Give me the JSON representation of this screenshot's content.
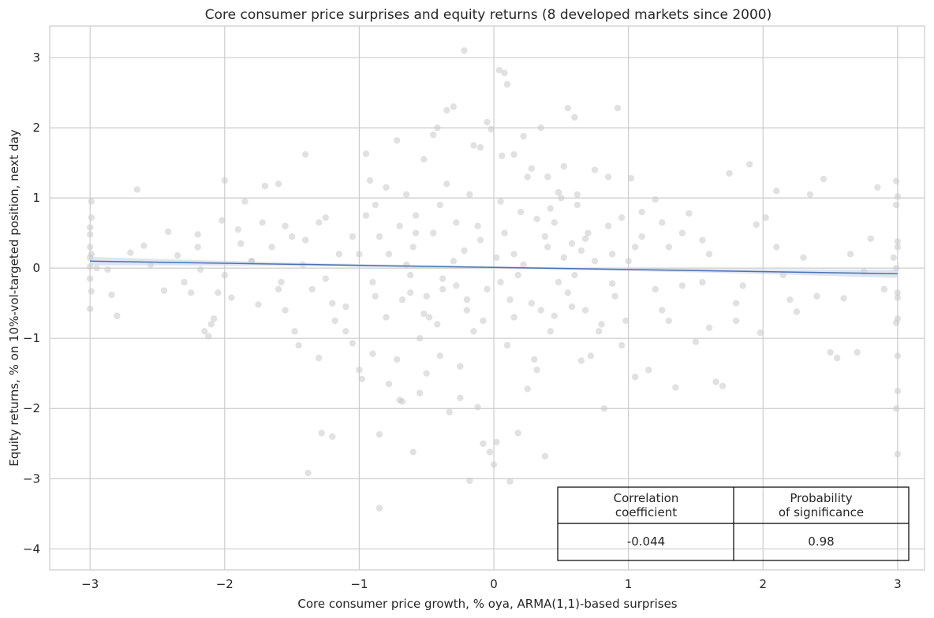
{
  "chart_data": {
    "type": "scatter",
    "title": "Core consumer price surprises and equity returns (8 developed markets since 2000)",
    "xlabel": "Core consumer price growth, % oya, ARMA(1,1)-based surprises",
    "ylabel": "Equity returns, % on 10%-vol-targeted position, next day",
    "xlim": [
      -3.3,
      3.2
    ],
    "ylim": [
      -4.3,
      3.45
    ],
    "xticks": [
      -3,
      -2,
      -1,
      0,
      1,
      2,
      3
    ],
    "xtick_labels": [
      "−3",
      "−2",
      "−1",
      "0",
      "1",
      "2",
      "3"
    ],
    "yticks": [
      -4,
      -3,
      -2,
      -1,
      0,
      1,
      2,
      3
    ],
    "ytick_labels": [
      "−4",
      "−3",
      "−2",
      "−1",
      "0",
      "1",
      "2",
      "3"
    ],
    "grid": true,
    "point_color": "#c8c8c8",
    "regression": {
      "x": [
        -3,
        3
      ],
      "y": [
        0.1,
        -0.08
      ],
      "color": "#4c72b0",
      "ci_color": "#c8d3ea",
      "ci_halfwidth_edges": 0.06,
      "ci_halfwidth_center": 0.015
    },
    "points": [
      [
        -2.99,
        0.95
      ],
      [
        -2.99,
        0.72
      ],
      [
        -3.0,
        0.58
      ],
      [
        -3.0,
        0.48
      ],
      [
        -3.0,
        0.3
      ],
      [
        -2.99,
        0.2
      ],
      [
        -3.0,
        0.15
      ],
      [
        -3.0,
        0.02
      ],
      [
        -3.0,
        -0.15
      ],
      [
        -2.99,
        -0.33
      ],
      [
        -3.0,
        -0.58
      ],
      [
        -2.95,
        0.0
      ],
      [
        -2.87,
        -0.02
      ],
      [
        -2.84,
        -0.38
      ],
      [
        -2.8,
        -0.68
      ],
      [
        -2.65,
        1.12
      ],
      [
        -2.7,
        0.22
      ],
      [
        -2.6,
        0.32
      ],
      [
        -2.55,
        0.05
      ],
      [
        -2.45,
        -0.32
      ],
      [
        -2.42,
        0.52
      ],
      [
        -2.35,
        0.18
      ],
      [
        -2.3,
        -0.2
      ],
      [
        -2.25,
        -0.35
      ],
      [
        -2.2,
        0.48
      ],
      [
        -2.18,
        -0.02
      ],
      [
        -2.15,
        -0.9
      ],
      [
        -2.12,
        -0.97
      ],
      [
        -2.1,
        -0.8
      ],
      [
        -2.08,
        -0.72
      ],
      [
        -2.05,
        -0.35
      ],
      [
        -2.02,
        0.68
      ],
      [
        -2.0,
        1.25
      ],
      [
        -1.95,
        -0.42
      ],
      [
        -1.9,
        0.55
      ],
      [
        -1.88,
        0.35
      ],
      [
        -1.85,
        0.95
      ],
      [
        -1.8,
        0.1
      ],
      [
        -1.75,
        -0.52
      ],
      [
        -1.72,
        0.65
      ],
      [
        -1.7,
        1.17
      ],
      [
        -1.65,
        0.3
      ],
      [
        -1.6,
        1.2
      ],
      [
        -1.58,
        -0.2
      ],
      [
        -1.55,
        -0.6
      ],
      [
        -1.5,
        0.45
      ],
      [
        -1.48,
        -0.9
      ],
      [
        -1.45,
        -1.1
      ],
      [
        -1.42,
        0.05
      ],
      [
        -1.4,
        1.62
      ],
      [
        -1.38,
        -2.92
      ],
      [
        -1.35,
        -0.3
      ],
      [
        -1.3,
        -1.28
      ],
      [
        -1.28,
        -2.35
      ],
      [
        -1.25,
        0.72
      ],
      [
        -1.2,
        -2.4
      ],
      [
        -1.18,
        -0.75
      ],
      [
        -1.15,
        0.2
      ],
      [
        -1.1,
        -0.55
      ],
      [
        -1.05,
        -1.07
      ],
      [
        -1.0,
        -1.45
      ],
      [
        -0.98,
        -1.58
      ],
      [
        -0.95,
        1.63
      ],
      [
        -0.92,
        1.25
      ],
      [
        -0.9,
        -1.22
      ],
      [
        -0.88,
        0.9
      ],
      [
        -0.85,
        -2.37
      ],
      [
        -0.85,
        -3.42
      ],
      [
        -0.8,
        1.15
      ],
      [
        -0.78,
        -1.65
      ],
      [
        -0.72,
        1.82
      ],
      [
        -0.7,
        -1.88
      ],
      [
        -0.68,
        -1.9
      ],
      [
        -0.65,
        1.05
      ],
      [
        -0.62,
        -0.35
      ],
      [
        -0.6,
        -2.62
      ],
      [
        -0.58,
        0.5
      ],
      [
        -0.55,
        -1.78
      ],
      [
        -0.52,
        1.55
      ],
      [
        -0.5,
        -1.5
      ],
      [
        -0.48,
        -0.7
      ],
      [
        -0.45,
        1.9
      ],
      [
        -0.42,
        2.0
      ],
      [
        -0.4,
        -1.25
      ],
      [
        -0.38,
        -0.3
      ],
      [
        -0.35,
        2.25
      ],
      [
        -0.33,
        -2.05
      ],
      [
        -0.3,
        2.3
      ],
      [
        -0.28,
        0.65
      ],
      [
        -0.25,
        -1.85
      ],
      [
        -0.22,
        3.1
      ],
      [
        -0.2,
        -0.45
      ],
      [
        -0.18,
        -3.03
      ],
      [
        -0.15,
        1.75
      ],
      [
        -0.12,
        -1.98
      ],
      [
        -0.1,
        1.72
      ],
      [
        -0.08,
        -2.5
      ],
      [
        -0.05,
        2.08
      ],
      [
        -0.03,
        -2.62
      ],
      [
        -0.02,
        1.98
      ],
      [
        0.0,
        -2.8
      ],
      [
        0.02,
        -2.48
      ],
      [
        0.04,
        2.82
      ],
      [
        0.06,
        1.6
      ],
      [
        0.08,
        2.78
      ],
      [
        0.1,
        2.62
      ],
      [
        0.12,
        -3.04
      ],
      [
        0.15,
        1.62
      ],
      [
        0.18,
        -2.35
      ],
      [
        0.22,
        1.88
      ],
      [
        0.25,
        -1.72
      ],
      [
        0.28,
        1.42
      ],
      [
        0.32,
        -1.45
      ],
      [
        0.35,
        2.0
      ],
      [
        0.38,
        -2.68
      ],
      [
        0.4,
        1.3
      ],
      [
        0.42,
        0.85
      ],
      [
        0.45,
        -0.68
      ],
      [
        0.48,
        1.08
      ],
      [
        0.52,
        1.45
      ],
      [
        0.55,
        2.28
      ],
      [
        0.58,
        -0.55
      ],
      [
        0.6,
        2.15
      ],
      [
        0.62,
        1.05
      ],
      [
        0.65,
        -1.32
      ],
      [
        0.68,
        0.42
      ],
      [
        0.72,
        -1.25
      ],
      [
        0.75,
        1.4
      ],
      [
        0.78,
        -0.9
      ],
      [
        0.82,
        -2.0
      ],
      [
        0.85,
        1.3
      ],
      [
        0.88,
        -0.22
      ],
      [
        0.92,
        2.28
      ],
      [
        0.95,
        0.72
      ],
      [
        0.98,
        -0.75
      ],
      [
        1.02,
        1.28
      ],
      [
        1.05,
        -1.55
      ],
      [
        1.1,
        0.45
      ],
      [
        1.15,
        -1.45
      ],
      [
        1.2,
        0.98
      ],
      [
        1.25,
        -0.6
      ],
      [
        1.3,
        0.3
      ],
      [
        1.35,
        -1.7
      ],
      [
        1.4,
        -0.25
      ],
      [
        1.45,
        0.78
      ],
      [
        1.5,
        -1.05
      ],
      [
        1.55,
        0.4
      ],
      [
        1.6,
        -0.85
      ],
      [
        1.65,
        -1.62
      ],
      [
        1.7,
        -1.68
      ],
      [
        1.75,
        1.35
      ],
      [
        1.8,
        -0.75
      ],
      [
        1.85,
        -0.25
      ],
      [
        1.9,
        1.48
      ],
      [
        1.95,
        0.62
      ],
      [
        1.98,
        -0.92
      ],
      [
        2.02,
        0.72
      ],
      [
        2.1,
        1.1
      ],
      [
        2.15,
        -0.1
      ],
      [
        2.2,
        -0.45
      ],
      [
        2.25,
        -0.62
      ],
      [
        2.3,
        0.15
      ],
      [
        2.35,
        1.05
      ],
      [
        2.4,
        -0.4
      ],
      [
        2.45,
        1.27
      ],
      [
        2.5,
        -1.2
      ],
      [
        2.55,
        -1.28
      ],
      [
        2.6,
        -0.43
      ],
      [
        2.65,
        0.2
      ],
      [
        2.7,
        -1.2
      ],
      [
        2.75,
        -0.05
      ],
      [
        2.8,
        0.42
      ],
      [
        2.85,
        1.15
      ],
      [
        2.9,
        -0.3
      ],
      [
        2.97,
        0.15
      ],
      [
        2.99,
        1.24
      ],
      [
        3.0,
        1.02
      ],
      [
        2.99,
        0.9
      ],
      [
        3.0,
        0.38
      ],
      [
        3.0,
        0.3
      ],
      [
        2.99,
        0.0
      ],
      [
        3.0,
        -0.35
      ],
      [
        3.0,
        -0.42
      ],
      [
        3.0,
        -0.72
      ],
      [
        2.99,
        -0.78
      ],
      [
        3.0,
        -1.25
      ],
      [
        3.0,
        -1.75
      ],
      [
        2.99,
        -2.0
      ],
      [
        3.0,
        -2.65
      ],
      [
        0.28,
        -0.5
      ],
      [
        -0.1,
        0.4
      ],
      [
        0.05,
        -0.2
      ],
      [
        -0.3,
        0.1
      ],
      [
        0.4,
        0.3
      ],
      [
        -0.5,
        -0.4
      ],
      [
        0.2,
        0.8
      ],
      [
        -0.15,
        -0.9
      ],
      [
        0.6,
        -0.1
      ],
      [
        -0.7,
        0.6
      ],
      [
        0.35,
        -0.6
      ],
      [
        -0.4,
        0.9
      ],
      [
        0.1,
        -1.1
      ],
      [
        0.7,
        0.5
      ],
      [
        -0.9,
        -0.2
      ],
      [
        0.5,
        1.0
      ],
      [
        -0.2,
        -0.6
      ],
      [
        0.15,
        0.2
      ],
      [
        -0.6,
        0.3
      ],
      [
        0.9,
        -0.4
      ],
      [
        -1.0,
        0.2
      ],
      [
        0.3,
        -1.3
      ],
      [
        -0.35,
        1.2
      ],
      [
        1.0,
        0.1
      ],
      [
        -1.2,
        -0.5
      ],
      [
        0.45,
        0.65
      ],
      [
        -0.55,
        -1.0
      ],
      [
        0.65,
        0.25
      ],
      [
        -0.8,
        -0.7
      ],
      [
        1.2,
        -0.3
      ],
      [
        -1.4,
        0.4
      ],
      [
        0.25,
        1.3
      ],
      [
        -0.25,
        -1.4
      ],
      [
        0.8,
        -0.8
      ],
      [
        -0.45,
        0.5
      ],
      [
        1.4,
        0.5
      ],
      [
        -1.6,
        -0.3
      ],
      [
        0.05,
        0.95
      ],
      [
        -0.05,
        -0.3
      ],
      [
        0.55,
        -0.35
      ],
      [
        -0.65,
        0.05
      ],
      [
        1.1,
        0.8
      ],
      [
        -1.1,
        -0.9
      ],
      [
        0.18,
        -0.1
      ],
      [
        -0.12,
        0.6
      ],
      [
        0.75,
        0.1
      ],
      [
        -0.85,
        0.45
      ],
      [
        1.6,
        0.2
      ],
      [
        -1.8,
        0.1
      ],
      [
        0.38,
        0.45
      ],
      [
        -0.38,
        -0.15
      ],
      [
        0.95,
        -1.1
      ],
      [
        -0.95,
        0.75
      ],
      [
        1.8,
        -0.5
      ],
      [
        -2.0,
        -0.1
      ],
      [
        0.02,
        0.15
      ],
      [
        0.12,
        -0.45
      ],
      [
        -0.22,
        0.25
      ],
      [
        0.42,
        -0.9
      ],
      [
        -0.52,
        -0.65
      ],
      [
        0.62,
        0.9
      ],
      [
        -0.72,
        -1.3
      ],
      [
        0.85,
        0.6
      ],
      [
        -1.3,
        0.65
      ],
      [
        1.3,
        -0.75
      ],
      [
        0.08,
        0.5
      ],
      [
        -0.08,
        -0.75
      ],
      [
        0.22,
        0.05
      ],
      [
        -0.28,
        -0.25
      ],
      [
        0.48,
        -0.2
      ],
      [
        -0.58,
        0.75
      ],
      [
        0.68,
        -0.6
      ],
      [
        -0.78,
        0.2
      ],
      [
        1.05,
        0.3
      ],
      [
        -1.05,
        0.45
      ],
      [
        0.32,
        0.7
      ],
      [
        -0.42,
        -0.8
      ],
      [
        0.58,
        0.35
      ],
      [
        -0.68,
        -0.45
      ],
      [
        1.25,
        0.65
      ],
      [
        -1.25,
        -0.15
      ],
      [
        1.55,
        -0.2
      ],
      [
        -1.55,
        0.6
      ],
      [
        0.15,
        -0.7
      ],
      [
        -0.18,
        1.05
      ],
      [
        0.52,
        0.15
      ],
      [
        -0.62,
        -0.1
      ],
      [
        0.88,
        0.2
      ],
      [
        -0.88,
        -0.4
      ],
      [
        2.1,
        0.3
      ],
      [
        -2.2,
        0.3
      ]
    ],
    "stats_table": {
      "headers": [
        "Correlation\ncoefficient",
        "Probability\nof significance"
      ],
      "values": [
        "-0.044",
        "0.98"
      ]
    }
  }
}
